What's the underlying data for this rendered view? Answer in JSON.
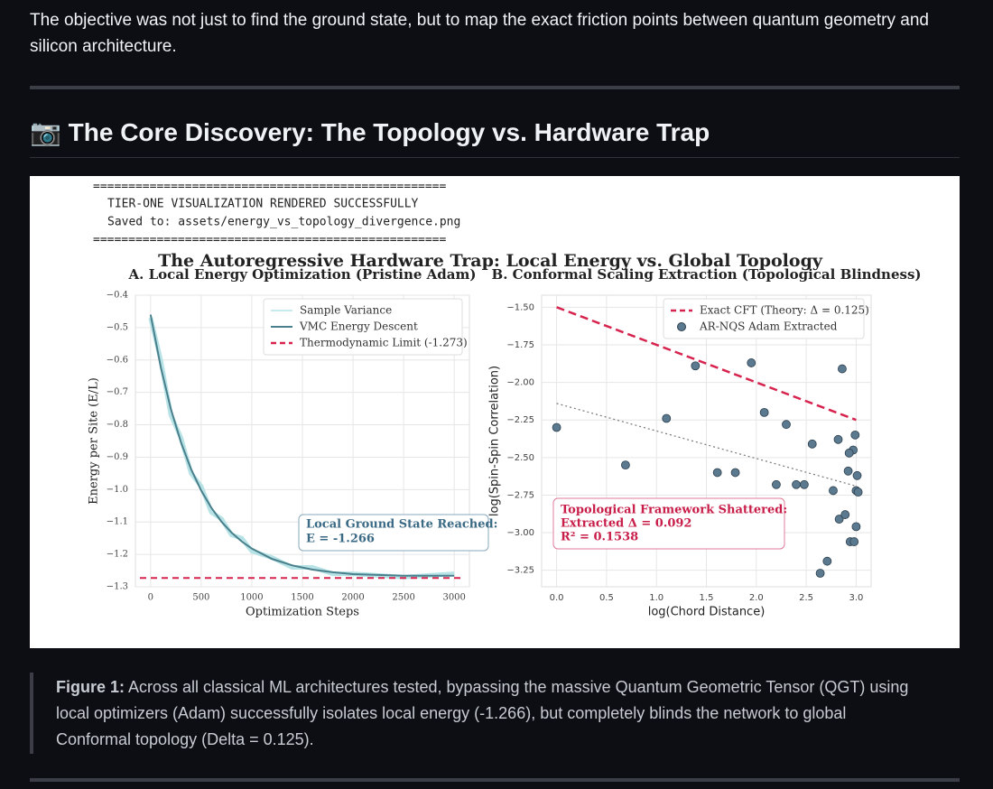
{
  "intro": "The objective was not just to find the ground state, but to map the exact friction points between quantum geometry and silicon architecture.",
  "heading": "📷 The Core Discovery: The Topology vs. Hardware Trap",
  "figure": {
    "console": [
      "==================================================",
      "TIER-ONE VISUALIZATION RENDERED SUCCESSFULLY",
      "Saved to: assets/energy_vs_topology_divergence.png",
      "=================================================="
    ],
    "title": "The Autoregressive Hardware Trap: Local Energy vs. Global Topology"
  },
  "chart_data": [
    {
      "type": "line",
      "title": "A. Local Energy Optimization (Pristine Adam)",
      "x_label": "Optimization Steps",
      "y_label": "Energy per Site (E/L)",
      "x": [
        0,
        100,
        200,
        300,
        400,
        500,
        600,
        700,
        800,
        900,
        1000,
        1200,
        1400,
        1600,
        1800,
        2000,
        2500,
        3000
      ],
      "series": [
        {
          "name": "Sample Variance",
          "color": "#b7e3e6",
          "values": [
            -0.47,
            -0.6,
            -0.77,
            -0.84,
            -0.95,
            -0.99,
            -1.07,
            -1.09,
            -1.14,
            -1.15,
            -1.19,
            -1.21,
            -1.24,
            -1.24,
            -1.26,
            -1.26,
            -1.27,
            -1.26
          ]
        },
        {
          "name": "VMC Energy Descent",
          "color": "#4a7f8c",
          "values": [
            -0.46,
            -0.621,
            -0.751,
            -0.854,
            -0.937,
            -1.003,
            -1.056,
            -1.099,
            -1.133,
            -1.16,
            -1.182,
            -1.214,
            -1.234,
            -1.247,
            -1.255,
            -1.261,
            -1.266,
            -1.266
          ]
        }
      ],
      "hline": {
        "name": "Thermodynamic Limit (-1.273)",
        "color": "#d6244f",
        "value": -1.273
      },
      "annotation": [
        "Local Ground State Reached:",
        "E = -1.266"
      ],
      "xlim": [
        -150,
        3150
      ],
      "xticks": [
        0,
        500,
        1000,
        1500,
        2000,
        2500,
        3000
      ],
      "ylim": [
        -1.3,
        -0.4
      ],
      "yticks": [
        {
          "value": -0.4,
          "label": "−0.4"
        },
        {
          "value": -0.5,
          "label": "−0.5"
        },
        {
          "value": -0.6,
          "label": "−0.6"
        },
        {
          "value": -0.7,
          "label": "−0.7"
        },
        {
          "value": -0.8,
          "label": "−0.8"
        },
        {
          "value": -0.9,
          "label": "−0.9"
        },
        {
          "value": -1.0,
          "label": "−1.0"
        },
        {
          "value": -1.1,
          "label": "−1.1"
        },
        {
          "value": -1.2,
          "label": "−1.2"
        },
        {
          "value": -1.3,
          "label": "−1.3"
        }
      ],
      "grid": true,
      "legend": "upper right"
    },
    {
      "type": "scatter",
      "title": "B. Conformal Scaling Extraction (Topological Blindness)",
      "x_label": "log(Chord Distance)",
      "y_label": "log(Spin-Spin Correlation)",
      "line": {
        "name": "Exact CFT (Theory: Δ = 0.125)",
        "color": "#d6244f",
        "x": [
          0,
          3
        ],
        "values": [
          -1.5,
          -2.25
        ]
      },
      "fit": {
        "color": "#777777",
        "x": [
          0,
          3
        ],
        "values": [
          -2.14,
          -2.69
        ]
      },
      "series": [
        {
          "name": "AR-NQS Adam Extracted",
          "color": "#5b7a90",
          "x": [
            0,
            0.69,
            1.1,
            1.39,
            1.61,
            1.79,
            1.95,
            2.08,
            2.2,
            2.3,
            2.4,
            2.48,
            2.56,
            2.64,
            2.71,
            2.77,
            2.83,
            2.89,
            2.94,
            2.86,
            3.0,
            2.99,
            2.97,
            2.93,
            2.92,
            3.01,
            3.02,
            2.98,
            3.0,
            2.82
          ],
          "values": [
            -2.3,
            -2.55,
            -2.24,
            -1.89,
            -2.6,
            -2.6,
            -1.87,
            -2.2,
            -2.68,
            -2.28,
            -2.68,
            -2.68,
            -2.41,
            -3.27,
            -3.19,
            -2.72,
            -2.91,
            -2.88,
            -3.06,
            -1.91,
            -2.72,
            -2.35,
            -2.45,
            -2.47,
            -2.59,
            -2.62,
            -2.73,
            -3.06,
            -2.96,
            -2.38
          ]
        }
      ],
      "annotation": [
        "Topological Framework Shattered:",
        "Extracted Δ = 0.092",
        "R² = 0.1538"
      ],
      "xlim": [
        -0.15,
        3.15
      ],
      "xticks": [
        {
          "value": 0,
          "label": "0.0"
        },
        {
          "value": 0.5,
          "label": "0.5"
        },
        {
          "value": 1,
          "label": "1.0"
        },
        {
          "value": 1.5,
          "label": "1.5"
        },
        {
          "value": 2,
          "label": "2.0"
        },
        {
          "value": 2.5,
          "label": "2.5"
        },
        {
          "value": 3,
          "label": "3.0"
        }
      ],
      "ylim": [
        -3.36,
        -1.42
      ],
      "yticks": [
        {
          "value": -1.5,
          "label": "−1.50"
        },
        {
          "value": -1.75,
          "label": "−1.75"
        },
        {
          "value": -2.0,
          "label": "−2.00"
        },
        {
          "value": -2.25,
          "label": "−2.25"
        },
        {
          "value": -2.5,
          "label": "−2.50"
        },
        {
          "value": -2.75,
          "label": "−2.75"
        },
        {
          "value": -3.0,
          "label": "−3.00"
        },
        {
          "value": -3.25,
          "label": "−3.25"
        }
      ],
      "grid": true,
      "legend": "upper right"
    }
  ],
  "caption": {
    "label": "Figure 1:",
    "text": " Across all classical ML architectures tested, bypassing the massive Quantum Geometric Tensor (QGT) using local optimizers (Adam) successfully isolates local energy (-1.266), but completely blinds the network to global Conformal topology (Delta = 0.125)."
  }
}
